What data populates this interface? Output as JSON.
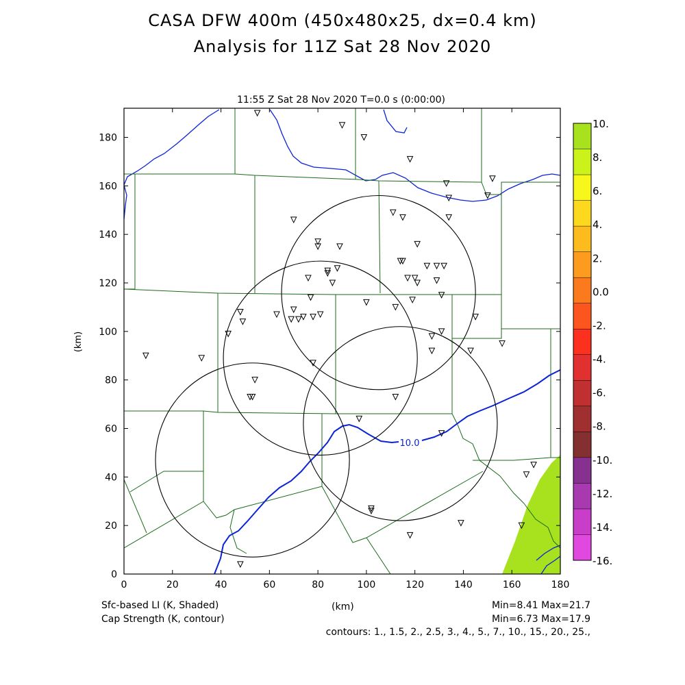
{
  "title": {
    "line1": "CASA DFW 400m (450x480x25, dx=0.4 km)",
    "line2": "Analysis for 11Z Sat 28 Nov 2020"
  },
  "chart_data": {
    "type": "contour",
    "subtitle": "11:55 Z Sat 28 Nov 2020    T=0.0 s (0:00:00)",
    "xlabel": "(km)",
    "ylabel": "(km)",
    "xlim": [
      0,
      180
    ],
    "ylim": [
      0,
      192
    ],
    "x_ticks": [
      0,
      20,
      40,
      60,
      80,
      100,
      120,
      140,
      160,
      180
    ],
    "y_ticks": [
      0,
      20,
      40,
      60,
      80,
      100,
      120,
      140,
      160,
      180
    ],
    "x_tick_labels": [
      "0",
      "20",
      "40",
      "60",
      "80",
      "100",
      "120",
      "140",
      "160",
      "180"
    ],
    "y_tick_labels": [
      "0",
      "20",
      "40",
      "60",
      "80",
      "100",
      "120",
      "140",
      "160",
      "180"
    ],
    "colorbar": {
      "labels": [
        "10.",
        "8.",
        "6.",
        "4.",
        "2.",
        "0.0",
        "-2.",
        "-4.",
        "-6.",
        "-8.",
        "-10.",
        "-12.",
        "-14.",
        "-16."
      ],
      "colors": [
        "#a8e21e",
        "#ccf21c",
        "#f7f71c",
        "#fcd81e",
        "#fcbc1e",
        "#fc9b1e",
        "#fc7a1e",
        "#fc561e",
        "#fc301e",
        "#e03030",
        "#c03030",
        "#a03030",
        "#843030",
        "#863090",
        "#a83ab0",
        "#c83ec8",
        "#e048e0"
      ]
    },
    "contour_label": "10.0",
    "radar_rings_center_km": [
      [
        53,
        47
      ],
      [
        81,
        89
      ],
      [
        114,
        62
      ],
      [
        105,
        116
      ]
    ],
    "radar_ring_radius_km": 40,
    "stations_km": [
      [
        55,
        190
      ],
      [
        90,
        185
      ],
      [
        99,
        180
      ],
      [
        118,
        171
      ],
      [
        133,
        161
      ],
      [
        152,
        163
      ],
      [
        150,
        156
      ],
      [
        134,
        155
      ],
      [
        70,
        146
      ],
      [
        111,
        149
      ],
      [
        115,
        147
      ],
      [
        134,
        147
      ],
      [
        80,
        137
      ],
      [
        80,
        135
      ],
      [
        89,
        135
      ],
      [
        121,
        136
      ],
      [
        114,
        129
      ],
      [
        115,
        129
      ],
      [
        84,
        125
      ],
      [
        84,
        124
      ],
      [
        88,
        126
      ],
      [
        125,
        127
      ],
      [
        129,
        127
      ],
      [
        132,
        127
      ],
      [
        76,
        122
      ],
      [
        117,
        122
      ],
      [
        120,
        122
      ],
      [
        121,
        120
      ],
      [
        129,
        121
      ],
      [
        86,
        120
      ],
      [
        77,
        114
      ],
      [
        100,
        112
      ],
      [
        119,
        113
      ],
      [
        131,
        115
      ],
      [
        112,
        110
      ],
      [
        48,
        108
      ],
      [
        70,
        109
      ],
      [
        63,
        107
      ],
      [
        69,
        105
      ],
      [
        72,
        105
      ],
      [
        74,
        106
      ],
      [
        78,
        106
      ],
      [
        81,
        107
      ],
      [
        49,
        104
      ],
      [
        145,
        106
      ],
      [
        43,
        99
      ],
      [
        127,
        98
      ],
      [
        131,
        100
      ],
      [
        9,
        90
      ],
      [
        32,
        89
      ],
      [
        127,
        92
      ],
      [
        143,
        92
      ],
      [
        156,
        95
      ],
      [
        78,
        87
      ],
      [
        54,
        80
      ],
      [
        52,
        73
      ],
      [
        53,
        73
      ],
      [
        112,
        73
      ],
      [
        97,
        64
      ],
      [
        131,
        58
      ],
      [
        102,
        27
      ],
      [
        102,
        26
      ],
      [
        139,
        21
      ],
      [
        164,
        20
      ],
      [
        118,
        16
      ],
      [
        169,
        45
      ],
      [
        166,
        41
      ],
      [
        48,
        4
      ]
    ]
  },
  "footer": {
    "left1": "Sfc-based LI (K, Shaded)",
    "left2": "Cap Strength (K, contour)",
    "center": "(km)",
    "right1": "Min=8.41 Max=21.7",
    "right2": "Min=6.73 Max=17.9",
    "contours": "contours: 1., 1.5, 2., 2.5, 3., 4., 5., 7., 10., 15., 20., 25.,"
  }
}
